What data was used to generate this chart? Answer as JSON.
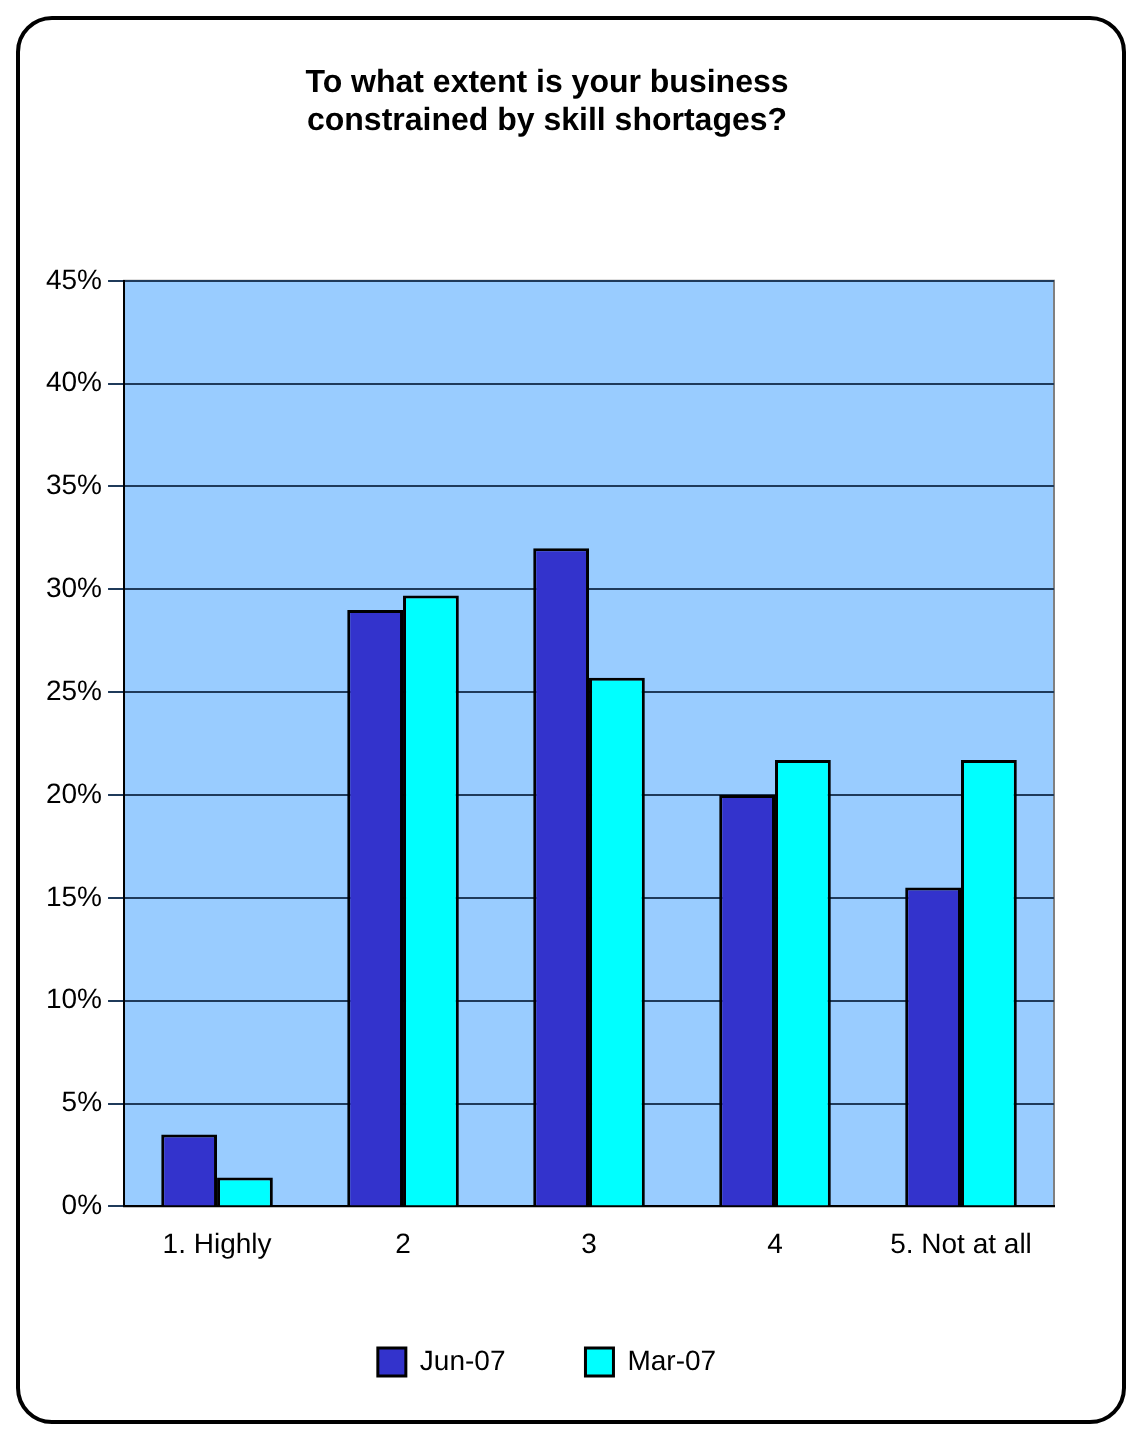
{
  "chart_data": {
    "type": "bar",
    "title": "To what extent is your business constrained by skill shortages?",
    "categories": [
      "1. Highly",
      "2",
      "3",
      "4",
      "5. Not at all"
    ],
    "series": [
      {
        "name": "Jun-07",
        "color": "#3333cc",
        "values": [
          3.5,
          29,
          32,
          20,
          15.5
        ]
      },
      {
        "name": "Mar-07",
        "color": "#00ffff",
        "values": [
          1.4,
          29.7,
          25.7,
          21.7,
          21.7
        ]
      }
    ],
    "ylim": [
      0,
      45
    ],
    "yticks": [
      {
        "value": 0,
        "label": "0%"
      },
      {
        "value": 5,
        "label": "5%"
      },
      {
        "value": 10,
        "label": "10%"
      },
      {
        "value": 15,
        "label": "15%"
      },
      {
        "value": 20,
        "label": "20%"
      },
      {
        "value": 25,
        "label": "25%"
      },
      {
        "value": 30,
        "label": "30%"
      },
      {
        "value": 35,
        "label": "35%"
      },
      {
        "value": 40,
        "label": "40%"
      },
      {
        "value": 45,
        "label": "45%"
      }
    ],
    "grid": "y",
    "legend": "bottom"
  }
}
